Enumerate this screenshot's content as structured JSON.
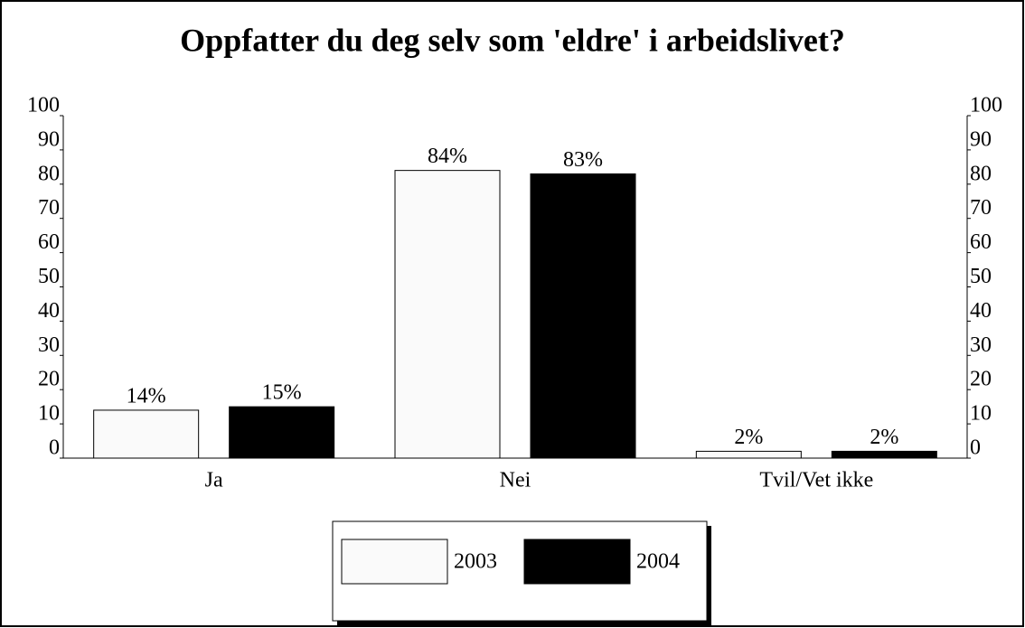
{
  "chart_data": {
    "type": "bar",
    "title": "Oppfatter du deg selv som 'eldre' i arbeidslivet?",
    "categories": [
      "Ja",
      "Nei",
      "Tvil/Vet ikke"
    ],
    "series": [
      {
        "name": "2003",
        "color": "#fafafa",
        "values": [
          14,
          84,
          2
        ],
        "value_labels": [
          "14%",
          "84%",
          "2%"
        ]
      },
      {
        "name": "2004",
        "color": "#000000",
        "values": [
          15,
          83,
          2
        ],
        "value_labels": [
          "15%",
          "83%",
          "2%"
        ]
      }
    ],
    "ylim": [
      0,
      100
    ],
    "yticks": [
      0,
      10,
      20,
      30,
      40,
      50,
      60,
      70,
      80,
      90,
      100
    ],
    "y2lim": [
      0,
      100
    ],
    "y2ticks": [
      0,
      10,
      20,
      30,
      40,
      50,
      60,
      70,
      80,
      90,
      100
    ],
    "grid": false,
    "legend": "bottom"
  }
}
